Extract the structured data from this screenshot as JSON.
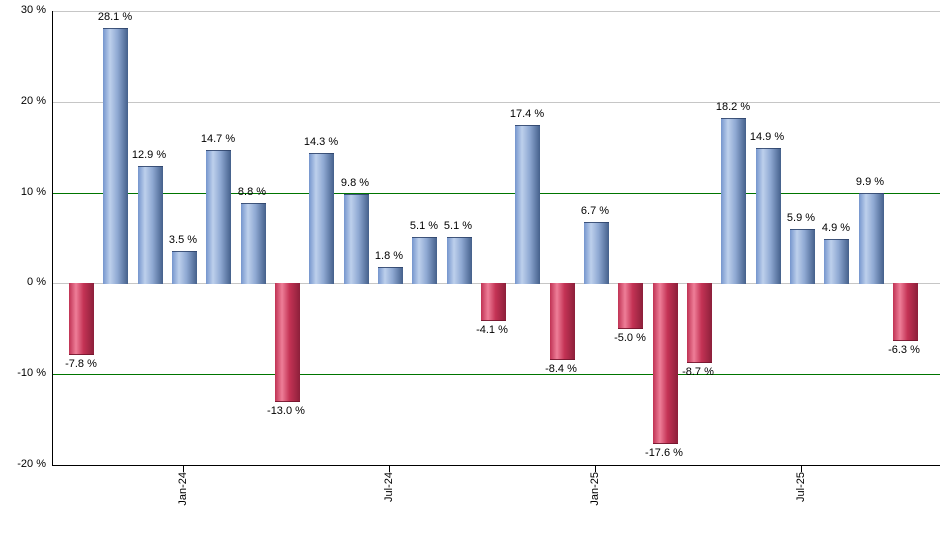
{
  "page": {
    "background": "#ffffff"
  },
  "chart_data": {
    "type": "bar",
    "title": "",
    "xlabel": "",
    "ylabel": "",
    "ylim": [
      -20,
      30
    ],
    "grid": true,
    "legend_position": "none",
    "values": [
      -7.8,
      28.1,
      12.9,
      3.5,
      14.7,
      8.8,
      -13.0,
      14.3,
      9.8,
      1.8,
      5.1,
      5.1,
      -4.1,
      17.4,
      -8.4,
      6.7,
      -5.0,
      -17.6,
      -8.7,
      18.2,
      14.9,
      5.9,
      4.9,
      9.9,
      -6.3
    ],
    "bar_labels": [
      "-7.8 %",
      "28.1 %",
      "12.9 %",
      "3.5 %",
      "14.7 %",
      "8.8 %",
      "-13.0 %",
      "14.3 %",
      "9.8 %",
      "1.8 %",
      "5.1 %",
      "5.1 %",
      "-4.1 %",
      "17.4 %",
      "-8.4 %",
      "6.7 %",
      "-5.0 %",
      "-17.6 %",
      "-8.7 %",
      "18.2 %",
      "14.9 %",
      "5.9 %",
      "4.9 %",
      "9.9 %",
      "-6.3 %"
    ],
    "y_ticks": [
      {
        "label": "30 %",
        "value": 30
      },
      {
        "label": "20 %",
        "value": 20
      },
      {
        "label": "10 %",
        "value": 10
      },
      {
        "label": "0 %",
        "value": 0
      },
      {
        "label": "-10 %",
        "value": -10
      },
      {
        "label": "-20 %",
        "value": -20
      }
    ],
    "grid_highlight_values": [
      10,
      -10
    ],
    "x_ticks": [
      {
        "label": "Jan-24",
        "bar_index": 3
      },
      {
        "label": "Jul-24",
        "bar_index": 9
      },
      {
        "label": "Jan-25",
        "bar_index": 15
      },
      {
        "label": "Jul-25",
        "bar_index": 21
      }
    ],
    "colors": {
      "positive_bar": "#7595cd",
      "positive_bar_gradient": [
        "#7595cd",
        "#bdd0ec",
        "#8fa9d3",
        "#44608b"
      ],
      "negative_bar": "#c03253",
      "negative_bar_gradient": [
        "#c03253",
        "#ee7e98",
        "#c43355",
        "#8c1f3a"
      ],
      "gridline": "#c6c6c6",
      "highlight_gridline": "#007500",
      "axis": "#000000",
      "label_text": "#000000"
    }
  }
}
